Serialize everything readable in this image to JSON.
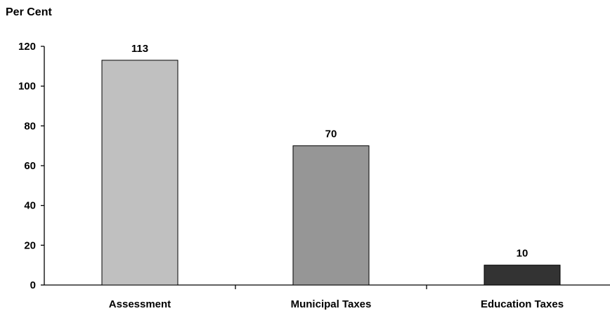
{
  "chart_data": {
    "type": "bar",
    "ylabel": "Per Cent",
    "xlabel": "",
    "title": "",
    "categories": [
      "Assessment",
      "Municipal Taxes",
      "Education Taxes"
    ],
    "values": [
      113,
      70,
      10
    ],
    "data_labels": [
      "113",
      "70",
      "10"
    ],
    "colors": [
      "#c0c0c0",
      "#969696",
      "#333333"
    ],
    "ylim": [
      0,
      120
    ],
    "yticks": [
      0,
      20,
      40,
      60,
      80,
      100,
      120
    ],
    "grid": false,
    "legend": "none"
  }
}
